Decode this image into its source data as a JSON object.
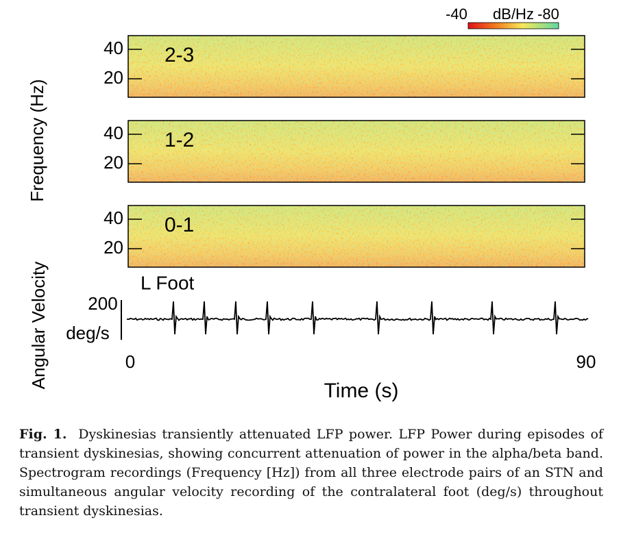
{
  "figure": {
    "colorbar": {
      "min_label": "-40",
      "unit": "dB/Hz",
      "max_label": "-80"
    },
    "y_axis_label": "Frequency (Hz)",
    "panels": [
      {
        "label": "2-3",
        "yticks": [
          "40",
          "20"
        ]
      },
      {
        "label": "1-2",
        "yticks": [
          "40",
          "20"
        ]
      },
      {
        "label": "0-1",
        "yticks": [
          "40",
          "20"
        ]
      }
    ],
    "trace": {
      "label": "L Foot",
      "y_axis_label": "Angular Velocity",
      "scale_value": "200",
      "scale_unit": "deg/s"
    },
    "x_axis": {
      "start": "0",
      "end": "90",
      "label": "Time (s)"
    }
  },
  "caption": {
    "label": "Fig. 1.",
    "text": "Dyskinesias transiently attenuated LFP power. LFP Power during episodes of transient dyskinesias, showing concurrent attenuation of power in the alpha/beta band. Spectrogram recordings (Frequency [Hz]) from all three electrode pairs of an STN and simultaneous angular velocity recording of the contralateral foot (deg/s) throughout transient dyskinesias."
  }
}
